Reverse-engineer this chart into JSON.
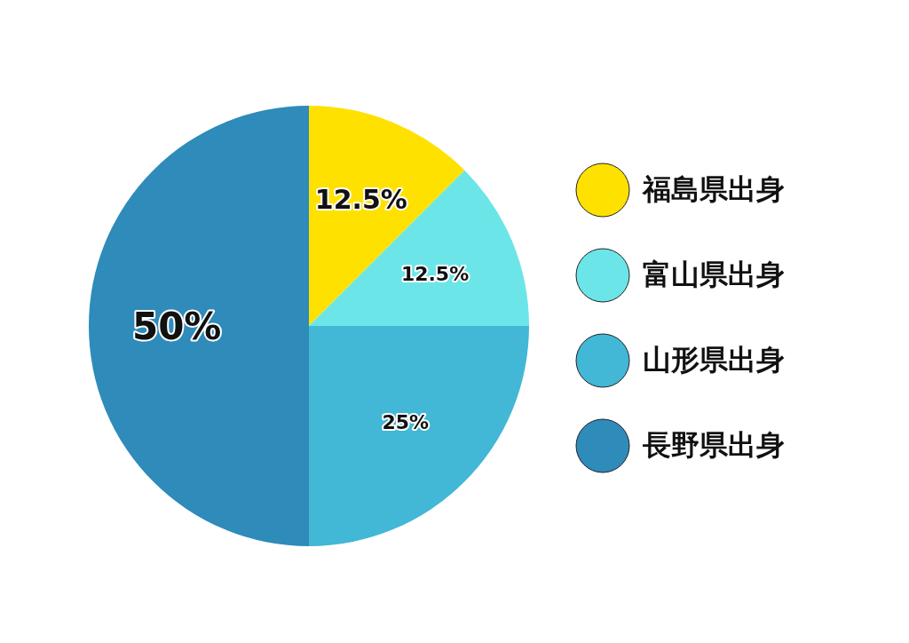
{
  "chart_data": {
    "type": "pie",
    "categories": [
      "福島県出身",
      "富山県出身",
      "山形県出身",
      "長野県出身"
    ],
    "values": [
      12.5,
      12.5,
      25,
      50
    ],
    "colors": [
      "#ffe100",
      "#6ce5e8",
      "#42b7d6",
      "#2e8bba"
    ],
    "value_labels": [
      "12.5%",
      "12.5%",
      "25%",
      "50%"
    ],
    "legend": "right"
  }
}
